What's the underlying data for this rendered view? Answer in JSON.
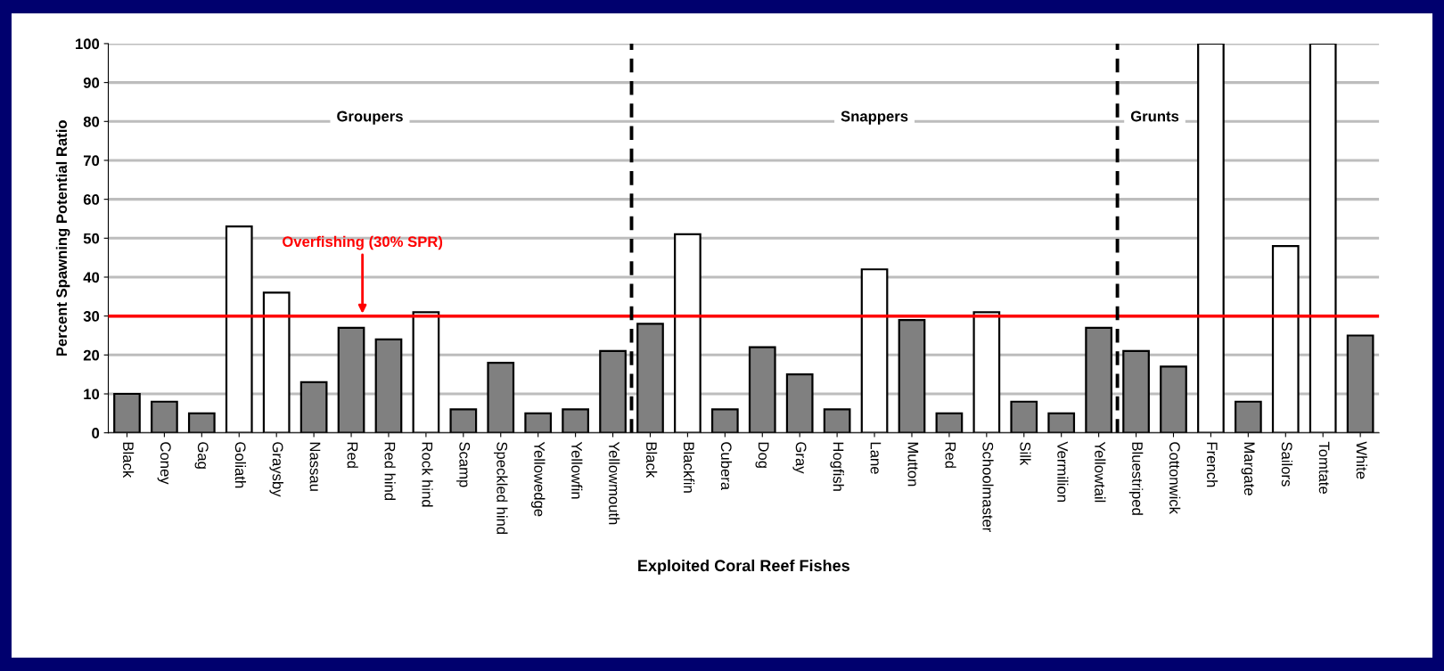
{
  "chart_data": {
    "type": "bar",
    "xlabel": "Exploited Coral Reef Fishes",
    "ylabel": "Percent Spawning Potential Ratio",
    "categories": [
      "Black",
      "Coney",
      "Gag",
      "Goliath",
      "Graysby",
      "Nassau",
      "Red",
      "Red hind",
      "Rock hind",
      "Scamp",
      "Speckled hind",
      "Yellowedge",
      "Yellowfin",
      "Yellowmouth",
      "Black",
      "Blackfin",
      "Cubera",
      "Dog",
      "Gray",
      "Hogfish",
      "Lane",
      "Mutton",
      "Red",
      "Schoolmaster",
      "Silk",
      "Vermilion",
      "Yellowtail",
      "Bluestriped",
      "Cottonwick",
      "French",
      "Margate",
      "Sailors",
      "Tomtate",
      "White"
    ],
    "values": [
      10,
      8,
      5,
      53,
      36,
      13,
      27,
      24,
      31,
      6,
      18,
      5,
      6,
      21,
      28,
      51,
      6,
      22,
      15,
      6,
      42,
      29,
      5,
      31,
      8,
      5,
      27,
      21,
      17,
      100,
      8,
      48,
      100,
      25
    ],
    "colors": [
      "#808080",
      "#808080",
      "#808080",
      "#ffffff",
      "#ffffff",
      "#808080",
      "#808080",
      "#808080",
      "#ffffff",
      "#808080",
      "#808080",
      "#808080",
      "#808080",
      "#808080",
      "#808080",
      "#ffffff",
      "#808080",
      "#808080",
      "#808080",
      "#808080",
      "#ffffff",
      "#808080",
      "#808080",
      "#ffffff",
      "#808080",
      "#808080",
      "#808080",
      "#808080",
      "#808080",
      "#ffffff",
      "#808080",
      "#ffffff",
      "#ffffff",
      "#808080"
    ],
    "ylim": [
      0,
      100
    ],
    "yticks": [
      0,
      10,
      20,
      30,
      40,
      50,
      60,
      70,
      80,
      90,
      100
    ],
    "grid": "y",
    "ref_lines": [
      {
        "axis": "y",
        "value": 30,
        "label": "Overfishing (30% SPR)",
        "color": "#ff0000",
        "line_style": "solid"
      }
    ],
    "annotations": [
      "Groupers",
      "Snappers",
      "Grunts"
    ]
  }
}
